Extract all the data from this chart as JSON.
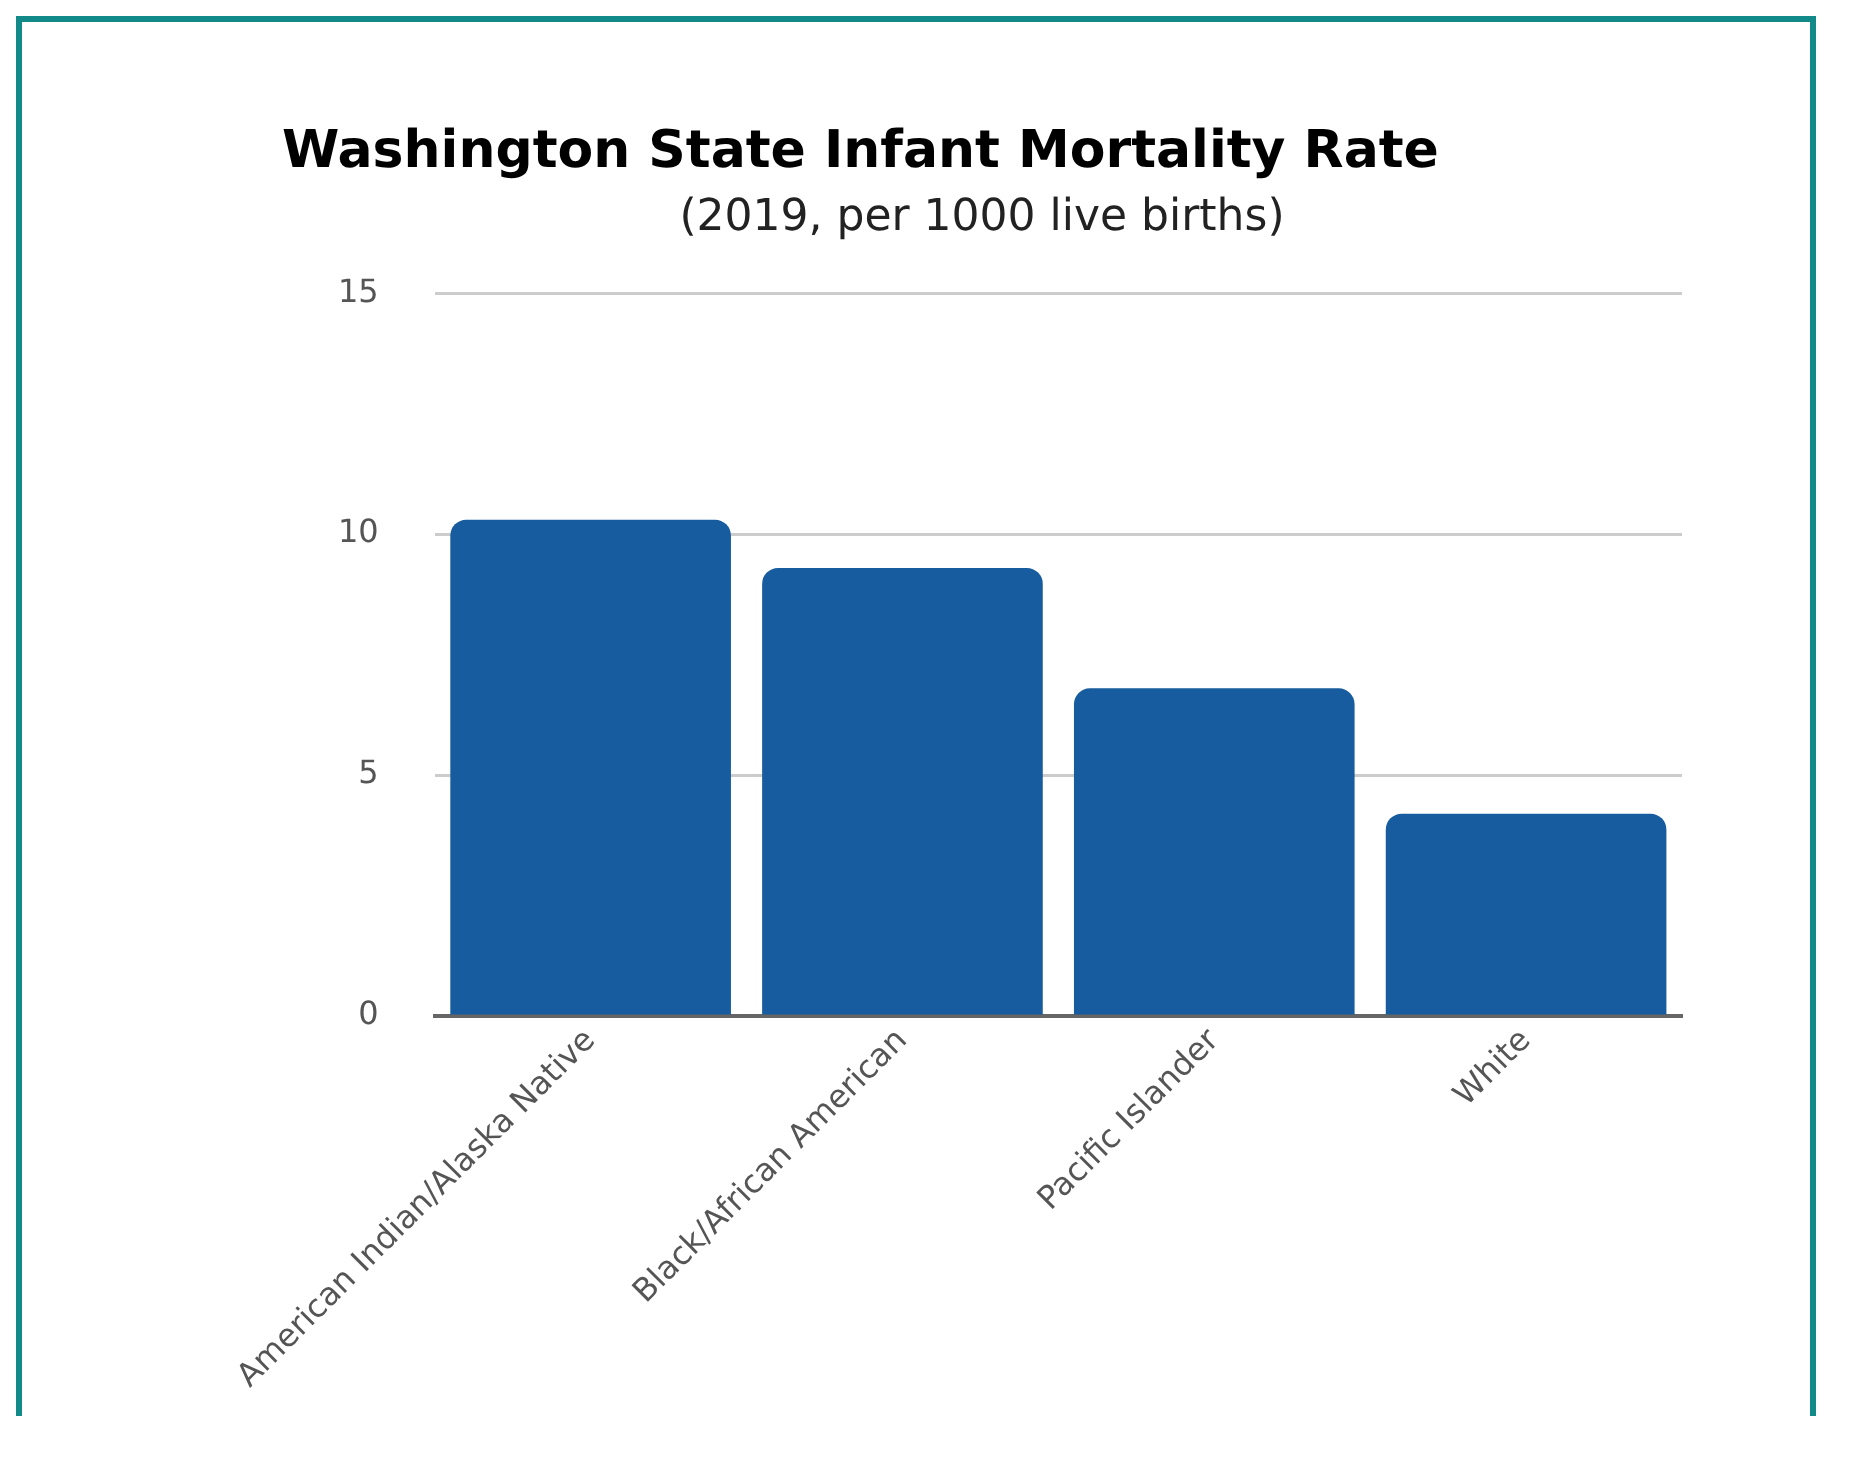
{
  "chart_data": {
    "type": "bar",
    "title": "Washington State Infant Mortality Rate",
    "subtitle": "(2019, per 1000 live births)",
    "categories": [
      "American Indian/Alaska Native",
      "Black/African American",
      "Pacific Islander",
      "White"
    ],
    "values": [
      10.3,
      9.3,
      6.8,
      4.2
    ],
    "color": "#165c9e",
    "ylim": [
      0,
      15
    ],
    "yticks": [
      0,
      5,
      10,
      15
    ],
    "grid": "y",
    "legend": false
  }
}
